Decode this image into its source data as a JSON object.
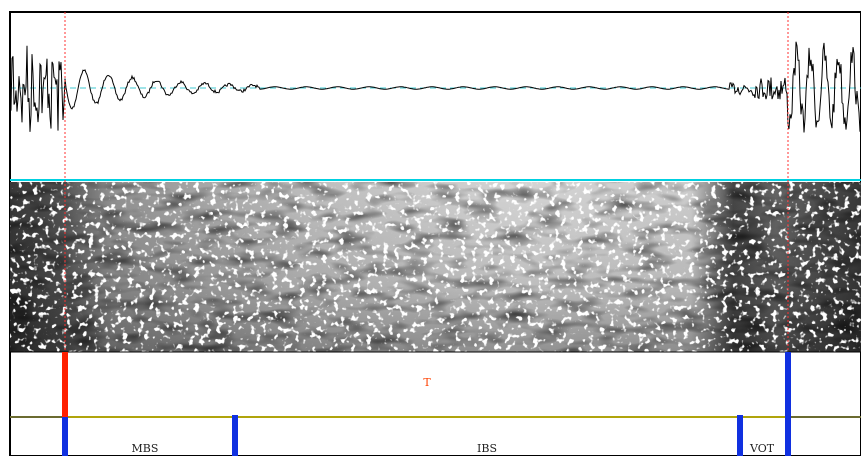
{
  "tiers": [
    {
      "intervals": [
        {
          "label": "T"
        }
      ]
    },
    {
      "intervals": [
        {
          "label": "MBS"
        },
        {
          "label": "IBS"
        },
        {
          "label": "VOT"
        }
      ]
    }
  ]
}
